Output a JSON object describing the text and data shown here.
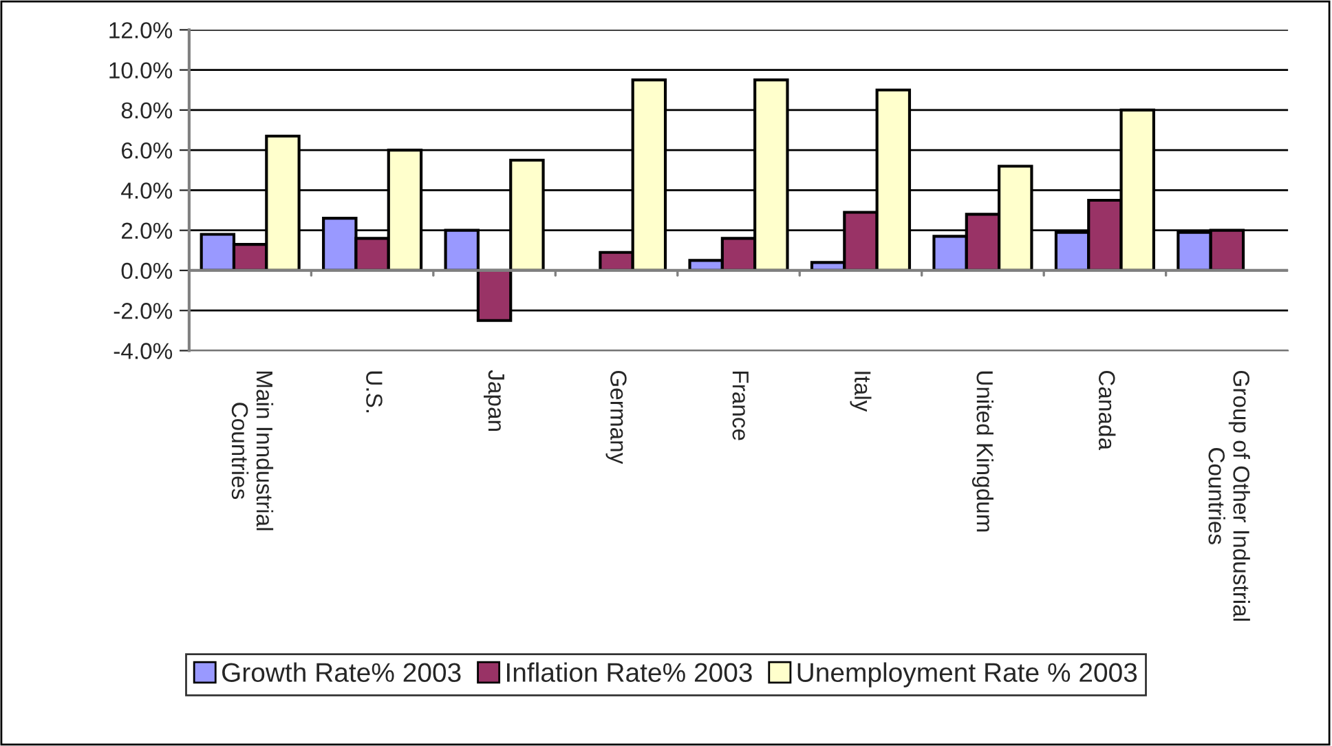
{
  "chart_data": {
    "type": "bar",
    "categories": [
      "Main Inndustrial\nCountries",
      "U.S.",
      "Japan",
      "Germany",
      "France",
      "Italy",
      "United Kingdum",
      "Canada",
      "Group of Other Industrial\nCountries"
    ],
    "series": [
      {
        "name": "Growth Rate% 2003",
        "color": "#9999ff",
        "values": [
          1.8,
          2.6,
          2.0,
          null,
          0.5,
          0.4,
          1.7,
          1.9,
          1.9
        ]
      },
      {
        "name": "Inflation Rate% 2003",
        "color": "#993366",
        "values": [
          1.3,
          1.6,
          -2.5,
          0.9,
          1.6,
          2.9,
          2.8,
          3.5,
          2.0
        ]
      },
      {
        "name": "Unemployment Rate % 2003",
        "color": "#ffffcc",
        "values": [
          6.7,
          6.0,
          5.5,
          9.5,
          9.5,
          9.0,
          5.2,
          8.0,
          null
        ]
      }
    ],
    "ylim": [
      -4,
      12
    ],
    "yticks": [
      {
        "value": -4,
        "label": "-4.0%"
      },
      {
        "value": -2,
        "label": "-2.0%"
      },
      {
        "value": 0,
        "label": "0.0%"
      },
      {
        "value": 2,
        "label": "2.0%"
      },
      {
        "value": 4,
        "label": "4.0%"
      },
      {
        "value": 6,
        "label": "6.0%"
      },
      {
        "value": 8,
        "label": "8.0%"
      },
      {
        "value": 10,
        "label": "10.0%"
      },
      {
        "value": 12,
        "label": "12.0%"
      }
    ],
    "grid": "y",
    "legend": "bottom"
  }
}
